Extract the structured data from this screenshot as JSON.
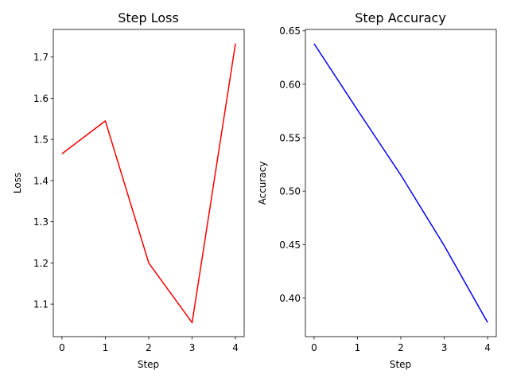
{
  "chart_data": [
    {
      "type": "line",
      "title": "Step Loss",
      "xlabel": "Step",
      "ylabel": "Loss",
      "xlim": [
        -0.2,
        4.2
      ],
      "ylim": [
        1.021,
        1.767
      ],
      "xticks": [
        0,
        1,
        2,
        3,
        4
      ],
      "yticks": [
        1.1,
        1.2,
        1.3,
        1.4,
        1.5,
        1.6,
        1.7
      ],
      "ytick_decimals": 1,
      "grid": false,
      "series": [
        {
          "color": "#ff0000",
          "x": [
            0,
            1,
            2,
            3,
            4
          ],
          "y": [
            1.465,
            1.545,
            1.2,
            1.055,
            1.733
          ]
        }
      ]
    },
    {
      "type": "line",
      "title": "Step Accuracy",
      "xlabel": "Step",
      "ylabel": "Accuracy",
      "xlim": [
        -0.2,
        4.2
      ],
      "ylim": [
        0.3638,
        0.6513
      ],
      "xticks": [
        0,
        1,
        2,
        3,
        4
      ],
      "yticks": [
        0.4,
        0.45,
        0.5,
        0.55,
        0.6,
        0.65
      ],
      "ytick_decimals": 2,
      "grid": false,
      "series": [
        {
          "color": "#0000ff",
          "x": [
            0,
            1,
            2,
            3,
            4
          ],
          "y": [
            0.638,
            0.576,
            0.515,
            0.449,
            0.377
          ]
        }
      ]
    }
  ]
}
